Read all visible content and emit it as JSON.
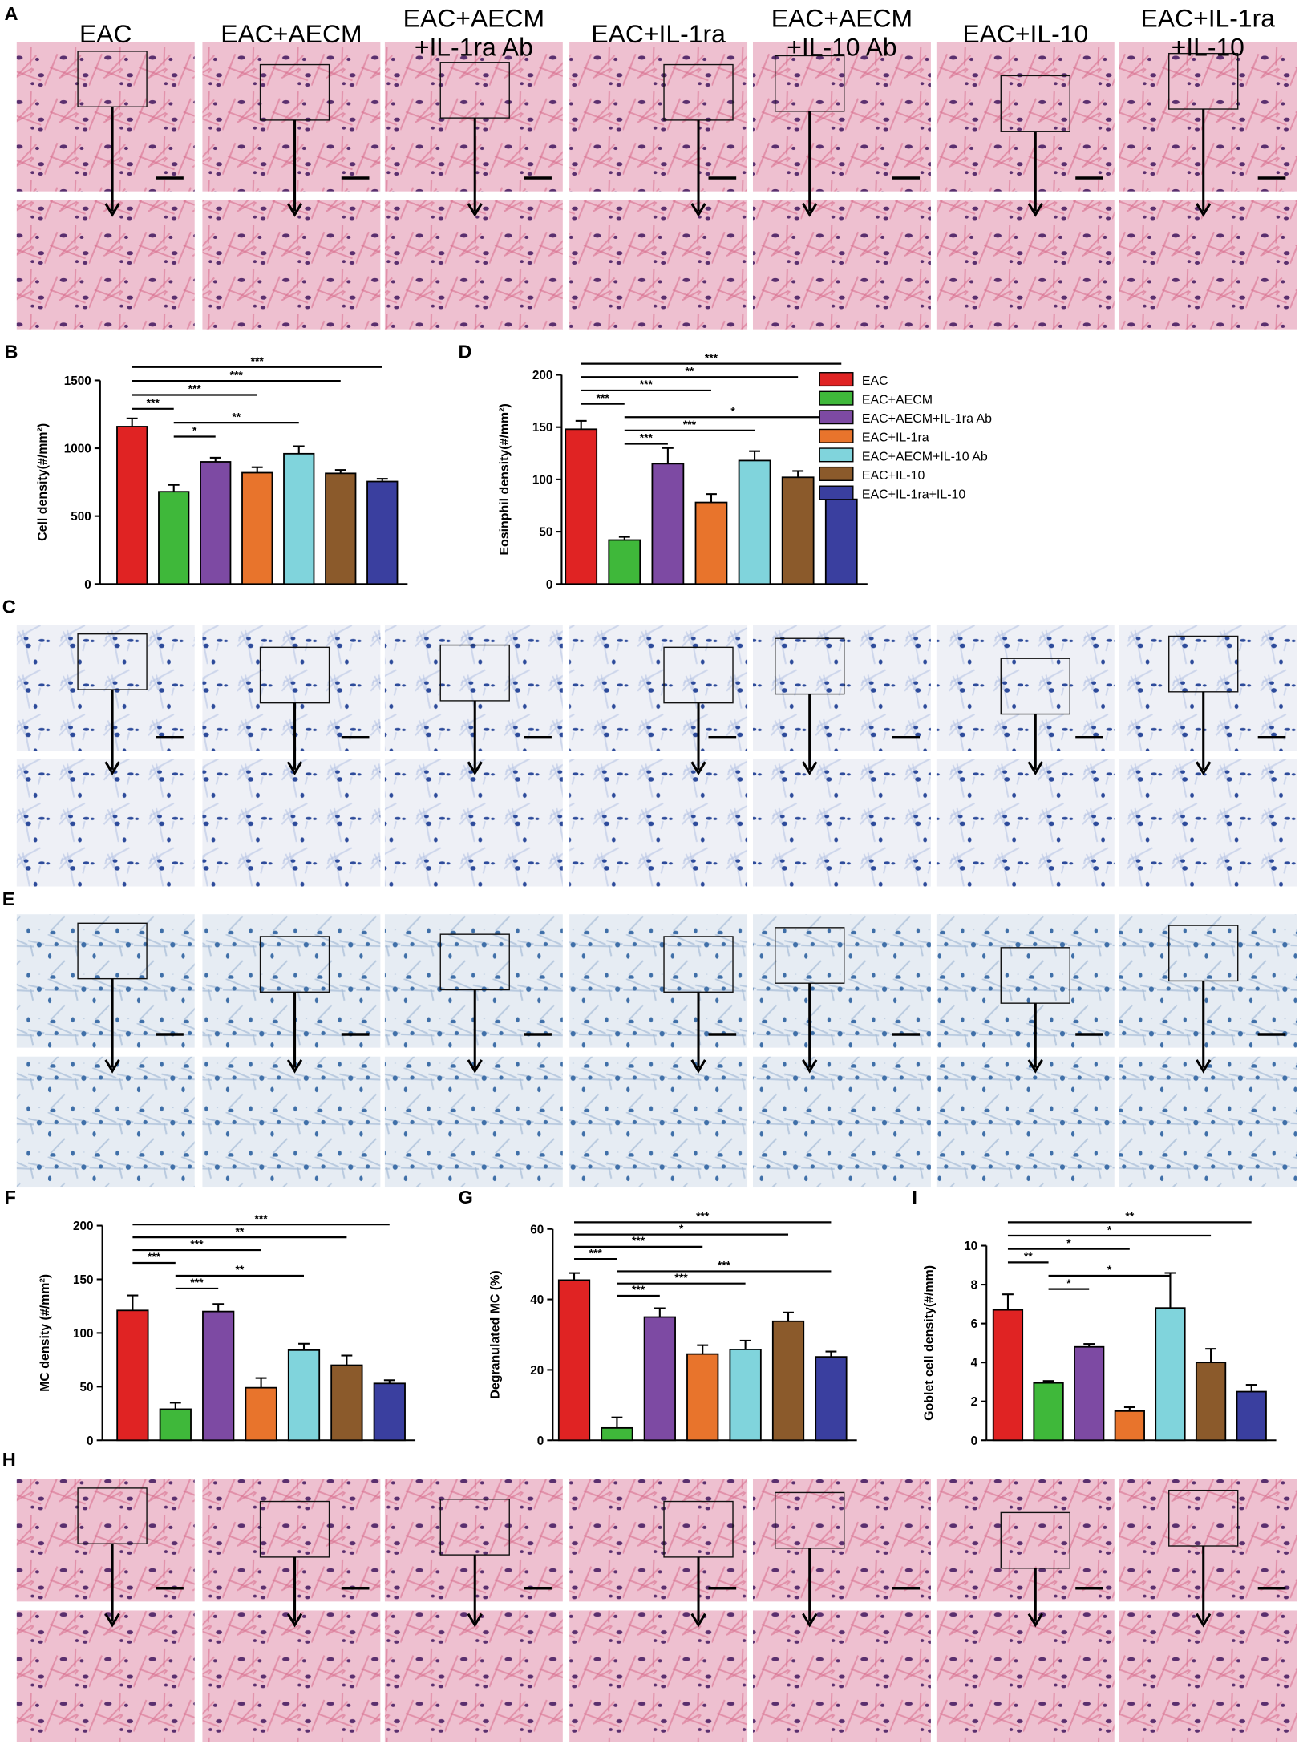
{
  "panel_labels": {
    "A": "A",
    "B": "B",
    "C": "C",
    "D": "D",
    "E": "E",
    "F": "F",
    "G": "G",
    "H": "H",
    "I": "I"
  },
  "column_headers": [
    [
      "EAC"
    ],
    [
      "EAC+AECM"
    ],
    [
      "EAC+AECM",
      "+IL-1ra Ab"
    ],
    [
      "EAC+IL-1ra"
    ],
    [
      "EAC+AECM",
      "+IL-10 Ab"
    ],
    [
      "EAC+IL-10"
    ],
    [
      "EAC+IL-1ra",
      "+IL-10"
    ]
  ],
  "chart_data": [
    {
      "type": "bar",
      "ylabel": "Cell density(#/mm²)",
      "categories": [
        null,
        null,
        null,
        null,
        null,
        null,
        null
      ],
      "colors": [
        "#e02323",
        "#3fb83a",
        "#7d4aa3",
        "#e8742c",
        "#80d4dc",
        "#8b5a2b",
        "#3a3f9f"
      ],
      "values": [
        1160,
        680,
        900,
        820,
        960,
        815,
        755
      ],
      "errors": [
        60,
        50,
        30,
        40,
        55,
        25,
        20
      ],
      "ylim": [
        0,
        1500
      ],
      "yticks": [
        0,
        500,
        1000,
        1500
      ],
      "annotations": [
        {
          "span": [
            0,
            6
          ],
          "label": "***"
        },
        {
          "span": [
            0,
            5
          ],
          "label": "***"
        },
        {
          "span": [
            0,
            3
          ],
          "label": "***"
        },
        {
          "span": [
            0,
            1
          ],
          "label": "***"
        },
        {
          "span": [
            1,
            4
          ],
          "label": "**"
        },
        {
          "span": [
            1,
            2
          ],
          "label": "*"
        }
      ]
    },
    {
      "type": "bar",
      "ylabel": "Eosinphil density(#/mm²)",
      "categories": [
        "EAC",
        "EAC+AECM",
        "EAC+AECM+IL-1ra Ab",
        "EAC+IL-1ra",
        "EAC+AECM+IL-10 Ab",
        "EAC+IL-10",
        "EAC+IL-1ra+IL-10"
      ],
      "colors": [
        "#e02323",
        "#3fb83a",
        "#7d4aa3",
        "#e8742c",
        "#80d4dc",
        "#8b5a2b",
        "#3a3f9f"
      ],
      "values": [
        148,
        42,
        115,
        78,
        118,
        102,
        81
      ],
      "errors": [
        8,
        3,
        15,
        8,
        9,
        6,
        4
      ],
      "ylim": [
        0,
        200
      ],
      "yticks": [
        0,
        50,
        100,
        150,
        200
      ],
      "legend": "right",
      "annotations": [
        {
          "span": [
            0,
            6
          ],
          "label": "***"
        },
        {
          "span": [
            0,
            5
          ],
          "label": "**"
        },
        {
          "span": [
            0,
            3
          ],
          "label": "***"
        },
        {
          "span": [
            0,
            1
          ],
          "label": "***"
        },
        {
          "span": [
            1,
            6
          ],
          "label": "*"
        },
        {
          "span": [
            1,
            4
          ],
          "label": "***"
        },
        {
          "span": [
            1,
            2
          ],
          "label": "***"
        }
      ]
    },
    {
      "type": "bar",
      "ylabel": "MC density (#/mm²)",
      "categories": [
        null,
        null,
        null,
        null,
        null,
        null,
        null
      ],
      "colors": [
        "#e02323",
        "#3fb83a",
        "#7d4aa3",
        "#e8742c",
        "#80d4dc",
        "#8b5a2b",
        "#3a3f9f"
      ],
      "values": [
        121,
        29,
        120,
        49,
        84,
        70,
        53
      ],
      "errors": [
        14,
        6,
        7,
        9,
        6,
        9,
        3
      ],
      "ylim": [
        0,
        200
      ],
      "yticks": [
        0,
        50,
        100,
        150,
        200
      ],
      "annotations": [
        {
          "span": [
            0,
            6
          ],
          "label": "***"
        },
        {
          "span": [
            0,
            5
          ],
          "label": "**"
        },
        {
          "span": [
            0,
            3
          ],
          "label": "***"
        },
        {
          "span": [
            0,
            1
          ],
          "label": "***"
        },
        {
          "span": [
            1,
            4
          ],
          "label": "**"
        },
        {
          "span": [
            1,
            2
          ],
          "label": "***"
        }
      ]
    },
    {
      "type": "bar",
      "ylabel": "Degranulated MC (%)",
      "categories": [
        null,
        null,
        null,
        null,
        null,
        null,
        null
      ],
      "colors": [
        "#e02323",
        "#3fb83a",
        "#7d4aa3",
        "#e8742c",
        "#80d4dc",
        "#8b5a2b",
        "#3a3f9f"
      ],
      "values": [
        45.5,
        3.5,
        35,
        24.5,
        25.8,
        33.8,
        23.7
      ],
      "errors": [
        2,
        3,
        2.5,
        2.5,
        2.5,
        2.5,
        1.5
      ],
      "ylim": [
        0,
        60
      ],
      "yticks": [
        0,
        20,
        40,
        60
      ],
      "annotations": [
        {
          "span": [
            0,
            6
          ],
          "label": "***"
        },
        {
          "span": [
            0,
            5
          ],
          "label": "*"
        },
        {
          "span": [
            0,
            3
          ],
          "label": "***"
        },
        {
          "span": [
            0,
            1
          ],
          "label": "***"
        },
        {
          "span": [
            1,
            6
          ],
          "label": "***"
        },
        {
          "span": [
            1,
            4
          ],
          "label": "***"
        },
        {
          "span": [
            1,
            2
          ],
          "label": "***"
        }
      ]
    },
    {
      "type": "bar",
      "ylabel": "Goblet cell density(#/mm)",
      "categories": [
        null,
        null,
        null,
        null,
        null,
        null,
        null
      ],
      "colors": [
        "#e02323",
        "#3fb83a",
        "#7d4aa3",
        "#e8742c",
        "#80d4dc",
        "#8b5a2b",
        "#3a3f9f"
      ],
      "values": [
        6.7,
        2.95,
        4.8,
        1.5,
        6.8,
        4.0,
        2.5
      ],
      "errors": [
        0.8,
        0.1,
        0.15,
        0.2,
        1.8,
        0.7,
        0.35
      ],
      "ylim": [
        0,
        10
      ],
      "yticks": [
        0,
        2,
        4,
        6,
        8,
        10
      ],
      "annotations": [
        {
          "span": [
            0,
            6
          ],
          "label": "**"
        },
        {
          "span": [
            0,
            5
          ],
          "label": "*"
        },
        {
          "span": [
            0,
            3
          ],
          "label": "*"
        },
        {
          "span": [
            0,
            1
          ],
          "label": "**"
        },
        {
          "span": [
            1,
            4
          ],
          "label": "*"
        },
        {
          "span": [
            1,
            2
          ],
          "label": "*"
        }
      ]
    }
  ]
}
